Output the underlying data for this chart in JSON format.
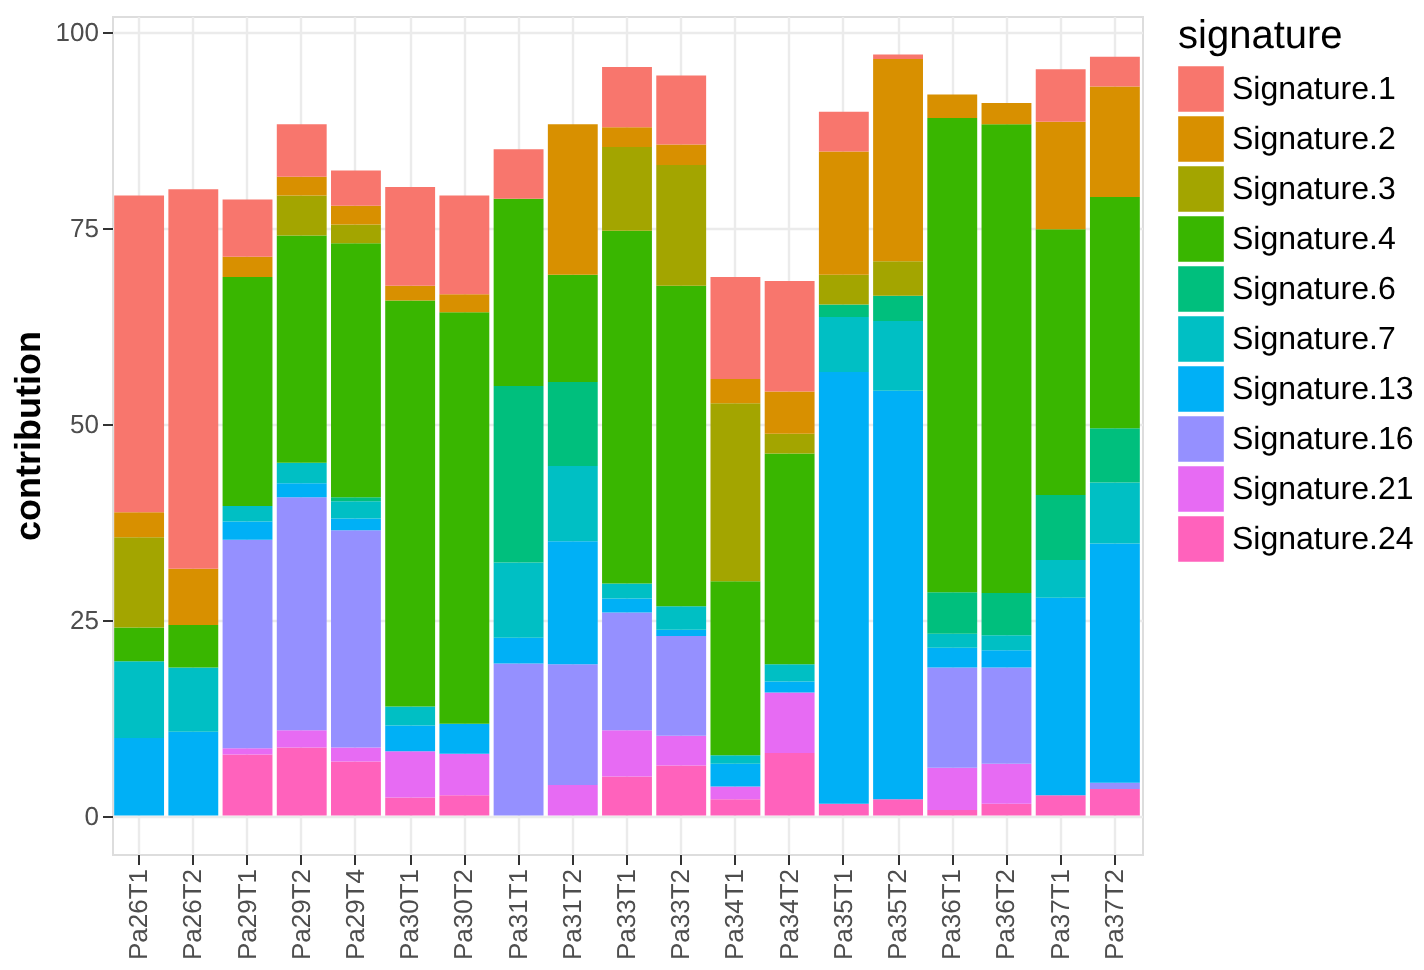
{
  "chart_data": {
    "type": "bar",
    "stacked": true,
    "ylabel": "contribution",
    "legend_title": "signature",
    "legend": "right",
    "grid": true,
    "categories": [
      "Pa26T1",
      "Pa26T2",
      "Pa29T1",
      "Pa29T2",
      "Pa29T4",
      "Pa30T1",
      "Pa30T2",
      "Pa31T1",
      "Pa31T2",
      "Pa33T1",
      "Pa33T2",
      "Pa34T1",
      "Pa34T2",
      "Pa35T1",
      "Pa35T2",
      "Pa36T1",
      "Pa36T2",
      "Pa37T1",
      "Pa37T2"
    ],
    "ylim": [
      -4.9,
      102
    ],
    "yticks": [
      0,
      25,
      50,
      75,
      100
    ],
    "series": [
      {
        "name": "Signature.24",
        "color": "#ff62bc",
        "values": [
          0,
          0,
          7.8,
          8.7,
          6.9,
          2.3,
          2.6,
          0,
          0,
          5.0,
          6.4,
          2.1,
          8.0,
          1.5,
          2.1,
          0.7,
          1.5,
          2.6,
          3.4
        ]
      },
      {
        "name": "Signature.21",
        "color": "#e76bf3",
        "values": [
          0,
          0,
          0.8,
          2.2,
          1.8,
          5.9,
          5.3,
          0,
          3.9,
          5.9,
          3.8,
          1.6,
          7.7,
          0,
          0,
          5.4,
          5.1,
          0,
          0
        ]
      },
      {
        "name": "Signature.16",
        "color": "#9590ff",
        "values": [
          0,
          0,
          26.6,
          29.7,
          27.7,
          0,
          0,
          19.4,
          15.4,
          15.0,
          12.7,
          0,
          0,
          0,
          0,
          12.8,
          12.3,
          0,
          0.8
        ]
      },
      {
        "name": "Signature.13",
        "color": "#00b0f6",
        "values": [
          9.9,
          10.7,
          2.3,
          1.8,
          1.5,
          3.3,
          3.8,
          3.3,
          15.7,
          1.8,
          0.8,
          2.9,
          1.4,
          55.1,
          52.1,
          2.5,
          2.2,
          25.2,
          30.5
        ]
      },
      {
        "name": "Signature.7",
        "color": "#00bfc4",
        "values": [
          9.8,
          8.2,
          2.0,
          2.6,
          2.2,
          2.4,
          0,
          9.6,
          9.6,
          1.9,
          3.0,
          1.1,
          2.2,
          7.0,
          8.9,
          1.8,
          1.9,
          4.8,
          7.8
        ]
      },
      {
        "name": "Signature.6",
        "color": "#00bf7d",
        "values": [
          0,
          0,
          0,
          0,
          0.5,
          0,
          0,
          22.5,
          10.7,
          0,
          0,
          0,
          0,
          1.6,
          3.2,
          5.3,
          5.4,
          8.3,
          6.9
        ]
      },
      {
        "name": "Signature.4",
        "color": "#39b600",
        "values": [
          4.3,
          5.4,
          29.2,
          29.0,
          32.4,
          51.8,
          52.5,
          23.9,
          13.7,
          45.0,
          40.9,
          22.2,
          26.9,
          0,
          0,
          60.5,
          59.8,
          33.9,
          29.5
        ]
      },
      {
        "name": "Signature.3",
        "color": "#a3a500",
        "values": [
          11.5,
          0,
          0,
          5.1,
          2.4,
          0,
          0,
          0,
          0,
          10.7,
          15.4,
          22.7,
          2.5,
          3.8,
          4.4,
          0,
          0,
          0,
          0
        ]
      },
      {
        "name": "Signature.2",
        "color": "#d89000",
        "values": [
          3.2,
          7.2,
          2.6,
          2.4,
          2.4,
          1.9,
          2.3,
          0,
          19.2,
          2.5,
          2.6,
          3.1,
          5.4,
          15.7,
          25.8,
          3.0,
          2.7,
          13.7,
          14.1
        ]
      },
      {
        "name": "Signature.1",
        "color": "#f8766d",
        "values": [
          40.4,
          48.4,
          7.3,
          6.7,
          4.5,
          12.6,
          12.6,
          6.3,
          0,
          7.7,
          8.8,
          13.0,
          14.1,
          5.1,
          0.6,
          0,
          0,
          6.7,
          3.8
        ]
      }
    ]
  }
}
